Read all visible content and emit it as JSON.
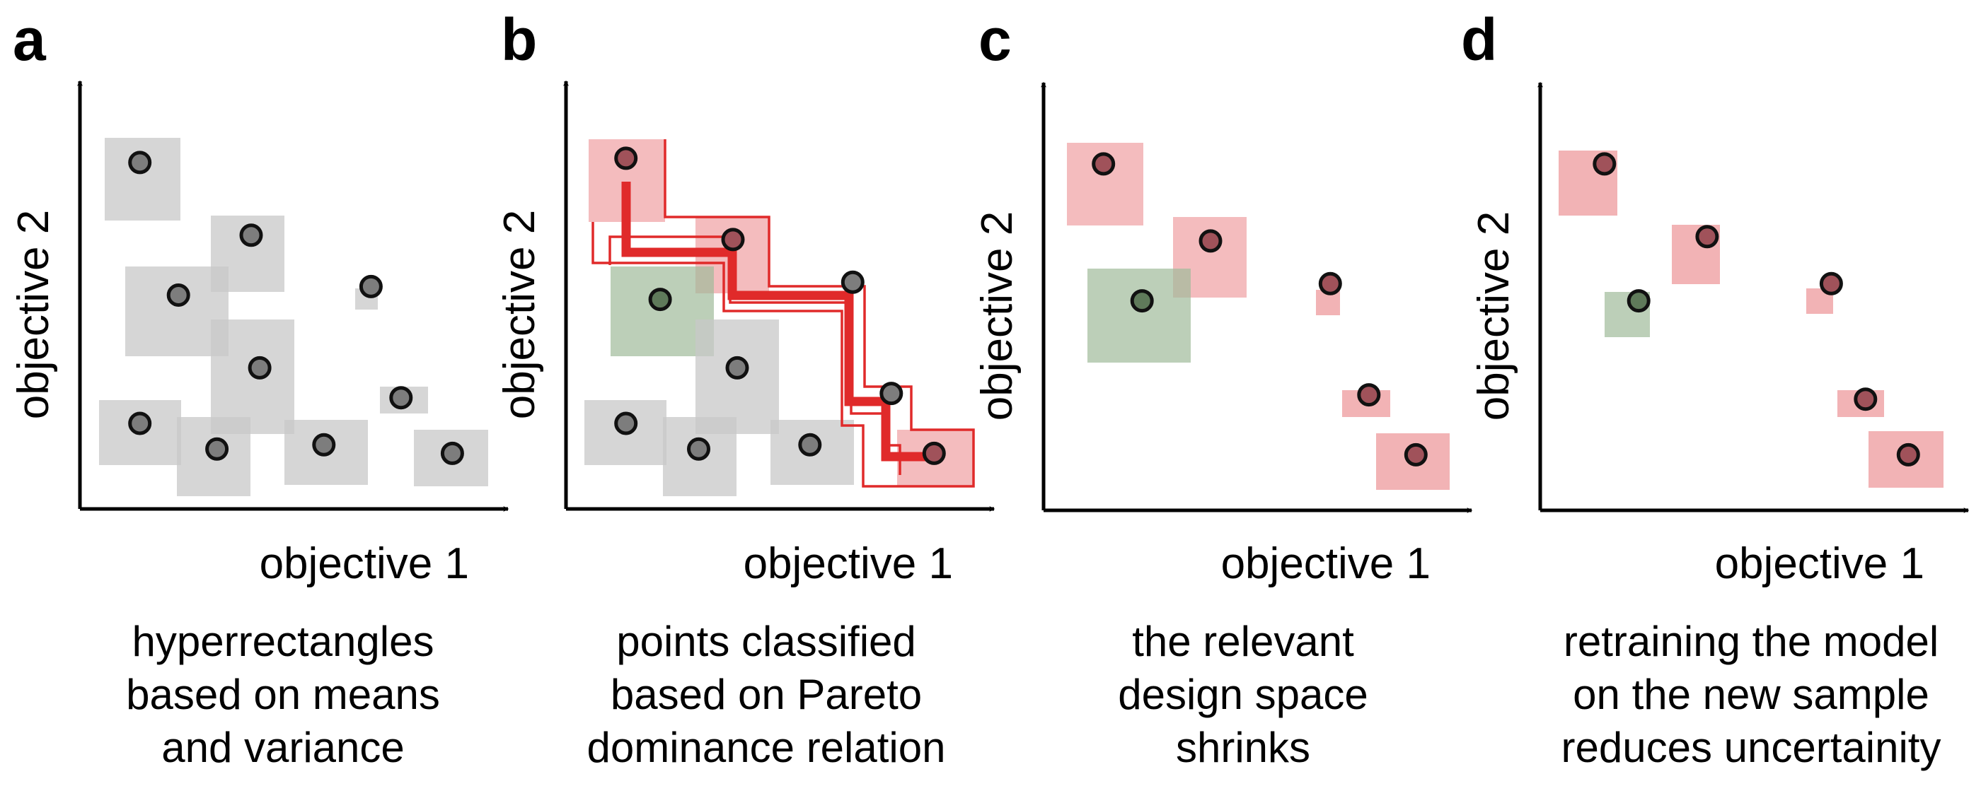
{
  "axes": {
    "x_label": "objective 1",
    "y_label": "objective 2"
  },
  "colors": {
    "gray_box": "#c8c8c8",
    "red_box": "#f0a6a8",
    "green_box": "#9fbb9a",
    "point_fill": "#7d7d7d",
    "red_point_fill": "#a0525a",
    "green_point_fill": "#5f7a5a",
    "pareto_line": "#e02a2a"
  },
  "panels": [
    {
      "letter": "a",
      "caption_lines": [
        "hyperrectangles",
        "based on means",
        "and variance"
      ],
      "points": [
        {
          "x": 0.14,
          "y": 0.81,
          "cls": "gray"
        },
        {
          "x": 0.4,
          "y": 0.64,
          "cls": "gray"
        },
        {
          "x": 0.23,
          "y": 0.5,
          "cls": "gray"
        },
        {
          "x": 0.68,
          "y": 0.52,
          "cls": "gray"
        },
        {
          "x": 0.42,
          "y": 0.33,
          "cls": "gray"
        },
        {
          "x": 0.75,
          "y": 0.26,
          "cls": "gray"
        },
        {
          "x": 0.14,
          "y": 0.2,
          "cls": "gray"
        },
        {
          "x": 0.32,
          "y": 0.14,
          "cls": "gray"
        },
        {
          "x": 0.57,
          "y": 0.15,
          "cls": "gray"
        },
        {
          "x": 0.87,
          "y": 0.13,
          "cls": "gray"
        }
      ]
    },
    {
      "letter": "b",
      "caption_lines": [
        "points classified",
        "based on Pareto",
        "dominance relation"
      ],
      "points": [
        {
          "x": 0.14,
          "y": 0.82,
          "cls": "red"
        },
        {
          "x": 0.39,
          "y": 0.63,
          "cls": "red"
        },
        {
          "x": 0.22,
          "y": 0.49,
          "cls": "green"
        },
        {
          "x": 0.67,
          "y": 0.53,
          "cls": "plain"
        },
        {
          "x": 0.4,
          "y": 0.33,
          "cls": "gray"
        },
        {
          "x": 0.76,
          "y": 0.27,
          "cls": "plain"
        },
        {
          "x": 0.14,
          "y": 0.2,
          "cls": "gray"
        },
        {
          "x": 0.31,
          "y": 0.14,
          "cls": "gray"
        },
        {
          "x": 0.57,
          "y": 0.15,
          "cls": "gray"
        },
        {
          "x": 0.86,
          "y": 0.13,
          "cls": "red"
        }
      ]
    },
    {
      "letter": "c",
      "caption_lines": [
        "the relevant",
        "design space",
        "shrinks"
      ],
      "points": [
        {
          "x": 0.14,
          "y": 0.81,
          "cls": "red"
        },
        {
          "x": 0.39,
          "y": 0.63,
          "cls": "red"
        },
        {
          "x": 0.23,
          "y": 0.49,
          "cls": "green"
        },
        {
          "x": 0.67,
          "y": 0.53,
          "cls": "red"
        },
        {
          "x": 0.76,
          "y": 0.27,
          "cls": "red"
        },
        {
          "x": 0.87,
          "y": 0.13,
          "cls": "red"
        }
      ]
    },
    {
      "letter": "d",
      "caption_lines": [
        "retraining the model",
        "on the new sample",
        "reduces uncertainity"
      ],
      "points": [
        {
          "x": 0.15,
          "y": 0.81,
          "cls": "red"
        },
        {
          "x": 0.39,
          "y": 0.64,
          "cls": "red"
        },
        {
          "x": 0.23,
          "y": 0.49,
          "cls": "green"
        },
        {
          "x": 0.68,
          "y": 0.53,
          "cls": "red"
        },
        {
          "x": 0.76,
          "y": 0.26,
          "cls": "red"
        },
        {
          "x": 0.86,
          "y": 0.13,
          "cls": "red"
        }
      ]
    }
  ]
}
